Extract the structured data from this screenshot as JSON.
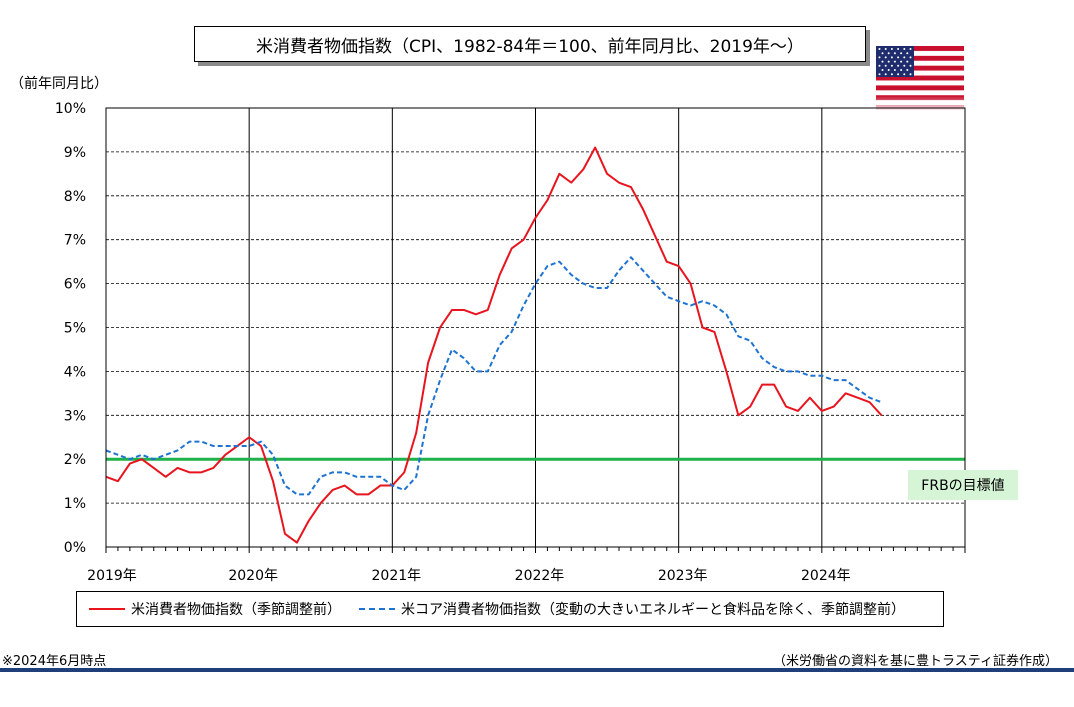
{
  "header": {
    "title": "米消費者物価指数（CPI、1982-84年＝100、前年同月比、2019年～）",
    "y_unit": "（前年同月比）"
  },
  "flag": {
    "icon": "us-flag-icon",
    "colors": {
      "red": "#c8102e",
      "white": "#ffffff",
      "blue": "#1f2d6e"
    }
  },
  "footer": {
    "note": "※2024年6月時点",
    "source": "（米労働省の資料を基に豊トラスティ証券作成）"
  },
  "legend": {
    "items": [
      {
        "label": "米消費者物価指数（季節調整前）",
        "color": "#e8141e",
        "style": "solid"
      },
      {
        "label": "米コア消費者物価指数（変動の大きいエネルギーと食料品を除く、季節調整前）",
        "color": "#1e73d2",
        "style": "dashed"
      }
    ]
  },
  "chart_data": {
    "type": "line",
    "title": "米消費者物価指数（CPI、1982-84年＝100、前年同月比、2019年～）",
    "ylabel": "（前年同月比）",
    "xlabel": "",
    "x_ticks": [
      "2019年",
      "2020年",
      "2021年",
      "2022年",
      "2023年",
      "2024年"
    ],
    "y_ticks": [
      "0%",
      "1%",
      "2%",
      "3%",
      "4%",
      "5%",
      "6%",
      "7%",
      "8%",
      "9%",
      "10%"
    ],
    "ylim": [
      0,
      10
    ],
    "x_start": "2019-01",
    "x_range_months": 72,
    "grid": {
      "horizontal": "dashed",
      "vertical_year": "solid"
    },
    "legend_position": "bottom",
    "target": {
      "label": "FRBの目標値",
      "value": 2,
      "color": "#1fb14a",
      "label_bg": "#d6f5d6"
    },
    "series": [
      {
        "name": "米消費者物価指数（季節調整前）",
        "color": "#e8141e",
        "style": "solid",
        "values": [
          1.6,
          1.5,
          1.9,
          2.0,
          1.8,
          1.6,
          1.8,
          1.7,
          1.7,
          1.8,
          2.1,
          2.3,
          2.5,
          2.3,
          1.5,
          0.3,
          0.1,
          0.6,
          1.0,
          1.3,
          1.4,
          1.2,
          1.2,
          1.4,
          1.4,
          1.7,
          2.6,
          4.2,
          5.0,
          5.4,
          5.4,
          5.3,
          5.4,
          6.2,
          6.8,
          7.0,
          7.5,
          7.9,
          8.5,
          8.3,
          8.6,
          9.1,
          8.5,
          8.3,
          8.2,
          7.7,
          7.1,
          6.5,
          6.4,
          6.0,
          5.0,
          4.9,
          4.0,
          3.0,
          3.2,
          3.7,
          3.7,
          3.2,
          3.1,
          3.4,
          3.1,
          3.2,
          3.5,
          3.4,
          3.3,
          3.0
        ]
      },
      {
        "name": "米コア消費者物価指数（変動の大きいエネルギーと食料品を除く、季節調整前）",
        "color": "#1e73d2",
        "style": "dashed",
        "values": [
          2.2,
          2.1,
          2.0,
          2.1,
          2.0,
          2.1,
          2.2,
          2.4,
          2.4,
          2.3,
          2.3,
          2.3,
          2.3,
          2.4,
          2.1,
          1.4,
          1.2,
          1.2,
          1.6,
          1.7,
          1.7,
          1.6,
          1.6,
          1.6,
          1.4,
          1.3,
          1.6,
          3.0,
          3.8,
          4.5,
          4.3,
          4.0,
          4.0,
          4.6,
          4.9,
          5.5,
          6.0,
          6.4,
          6.5,
          6.2,
          6.0,
          5.9,
          5.9,
          6.3,
          6.6,
          6.3,
          6.0,
          5.7,
          5.6,
          5.5,
          5.6,
          5.5,
          5.3,
          4.8,
          4.7,
          4.3,
          4.1,
          4.0,
          4.0,
          3.9,
          3.9,
          3.8,
          3.8,
          3.6,
          3.4,
          3.3
        ]
      }
    ]
  }
}
